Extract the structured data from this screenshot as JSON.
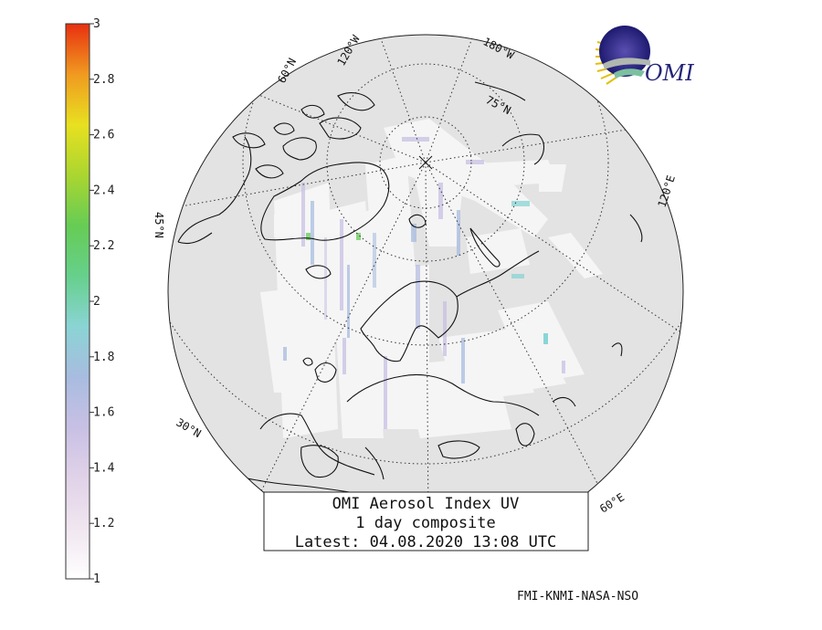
{
  "colorbar": {
    "min": 1,
    "max": 3,
    "ticks": [
      "1",
      "1.2",
      "1.4",
      "1.6",
      "1.8",
      "2",
      "2.2",
      "2.4",
      "2.6",
      "2.8",
      "3"
    ],
    "colors": [
      "#ffffff",
      "#f0e6f0",
      "#e0d2e8",
      "#c8c0e4",
      "#a8bce0",
      "#8ad4d4",
      "#66d08c",
      "#66cc55",
      "#aad630",
      "#e8e020",
      "#f09a20",
      "#e83010"
    ]
  },
  "map": {
    "projection": "north polar stereographic",
    "labels": {
      "lat_60": "60°N",
      "lat_30": "30°N",
      "lat_75": "75°N",
      "lat_45": "45°N",
      "lon_120w": "120°W",
      "lon_180w": "180°W",
      "lon_120e": "120°E",
      "lon_60e": "60°E"
    }
  },
  "title_box": {
    "line1": "OMI Aerosol Index UV",
    "line2": "1 day composite",
    "line3": "Latest: 04.08.2020 13:08 UTC"
  },
  "logo": {
    "text": "OMI"
  },
  "credit": "FMI-KNMI-NASA-NSO",
  "colors": {
    "disk": "#e3e3e3",
    "swath": "#f6f6f6",
    "coast": "#111111",
    "grid": "#333333"
  }
}
